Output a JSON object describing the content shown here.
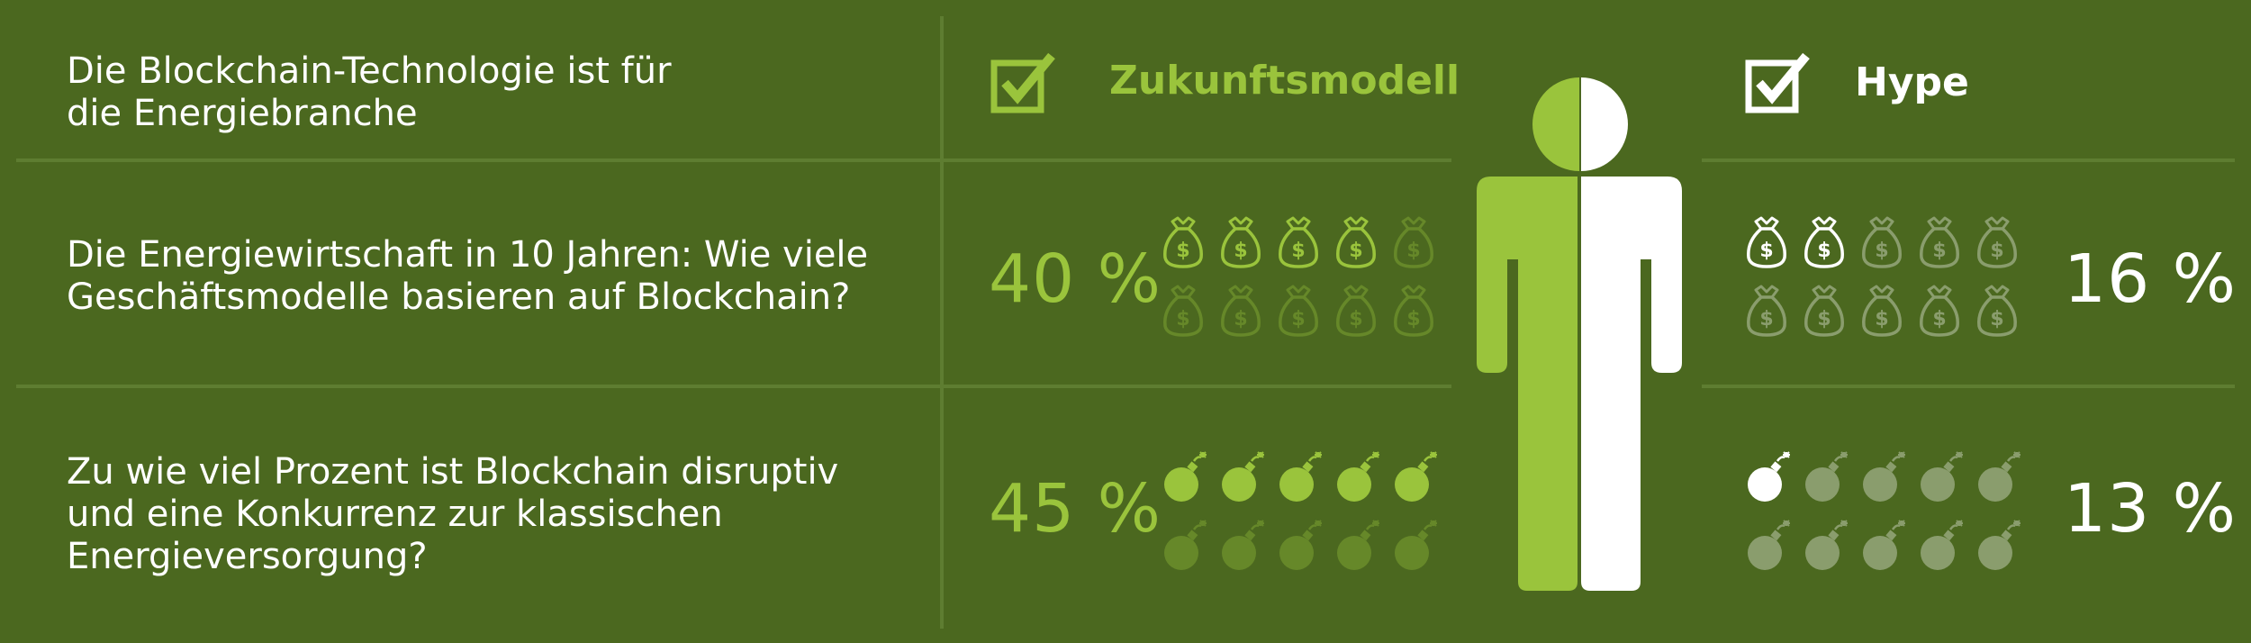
{
  "questions": {
    "q1": "Die Blockchain-Technologie ist für\ndie Energiebranche",
    "q2": "Die Energiewirtschaft in 10 Jahren: Wie viele\nGeschäftsmodelle basieren auf Blockchain?",
    "q3": "Zu wie viel Prozent ist Blockchain disruptiv\nund eine Konkurrenz zur klassischen\nEnergieversorgung?"
  },
  "headers": {
    "zukunft": "Zukunftsmodell",
    "hype": "Hype"
  },
  "percent_labels": {
    "zukunft_business": "40 %",
    "zukunft_disruption": "45 %",
    "hype_business": "16 %",
    "hype_disruption": "13 %"
  },
  "colors": {
    "background": "#4b681f",
    "accent_green": "#9ac43c",
    "white": "#ffffff"
  },
  "icons": {
    "business_models": "money-bag-icon",
    "disruption": "bomb-icon",
    "header": "checkbox-checked-icon",
    "figure": "person-icon"
  },
  "chart_data": {
    "type": "table",
    "columns": [
      "Zukunftsmodell",
      "Hype"
    ],
    "rows": [
      {
        "question": "Die Energiewirtschaft in 10 Jahren: Wie viele Geschäftsmodelle basieren auf Blockchain?",
        "icon": "money-bag-icon",
        "values": [
          40,
          16
        ],
        "filled_icons_of_10": [
          4,
          2
        ]
      },
      {
        "question": "Zu wie viel Prozent ist Blockchain disruptiv und eine Konkurrenz zur klassischen Energieversorgung?",
        "icon": "bomb-icon",
        "values": [
          45,
          13
        ],
        "filled_icons_of_10": [
          5,
          1
        ]
      }
    ]
  }
}
